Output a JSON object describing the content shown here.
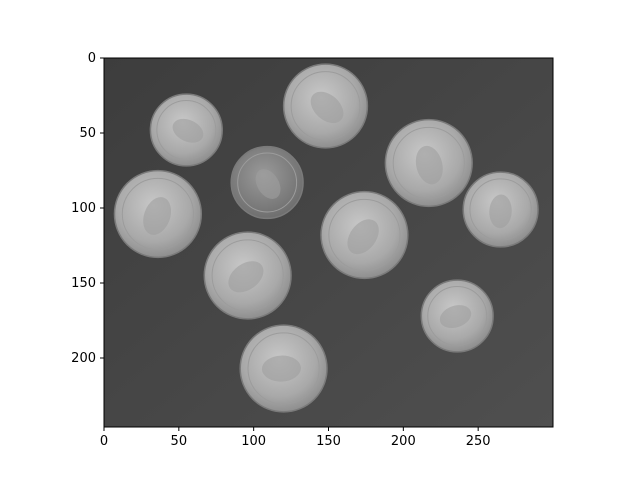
{
  "figure": {
    "image_description_hidden": "",
    "background_color": "#4a4a4a",
    "coin_color": "#b4b4b4",
    "axes_color": "#000000"
  },
  "x_axis": {
    "ticks": [
      {
        "value": 0,
        "label": "0"
      },
      {
        "value": 50,
        "label": "50"
      },
      {
        "value": 100,
        "label": "100"
      },
      {
        "value": 150,
        "label": "150"
      },
      {
        "value": 200,
        "label": "200"
      },
      {
        "value": 250,
        "label": "250"
      }
    ],
    "range": [
      0,
      300
    ]
  },
  "y_axis": {
    "ticks": [
      {
        "value": 0,
        "label": "0"
      },
      {
        "value": 50,
        "label": "50"
      },
      {
        "value": 100,
        "label": "100"
      },
      {
        "value": 150,
        "label": "150"
      },
      {
        "value": 200,
        "label": "200"
      }
    ],
    "range": [
      0,
      246
    ]
  },
  "coins": [
    {
      "kind": "dime",
      "x": 55,
      "y": 48,
      "r": 24
    },
    {
      "kind": "nickel",
      "x": 148,
      "y": 32,
      "r": 28
    },
    {
      "kind": "penny",
      "x": 109,
      "y": 83,
      "r": 24
    },
    {
      "kind": "nickel",
      "x": 217,
      "y": 70,
      "r": 29
    },
    {
      "kind": "dime",
      "x": 265,
      "y": 101,
      "r": 25
    },
    {
      "kind": "nickel",
      "x": 36,
      "y": 104,
      "r": 29
    },
    {
      "kind": "nickel",
      "x": 174,
      "y": 118,
      "r": 29
    },
    {
      "kind": "nickel",
      "x": 96,
      "y": 145,
      "r": 29
    },
    {
      "kind": "dime",
      "x": 236,
      "y": 172,
      "r": 24
    },
    {
      "kind": "nickel",
      "x": 120,
      "y": 207,
      "r": 29
    }
  ]
}
